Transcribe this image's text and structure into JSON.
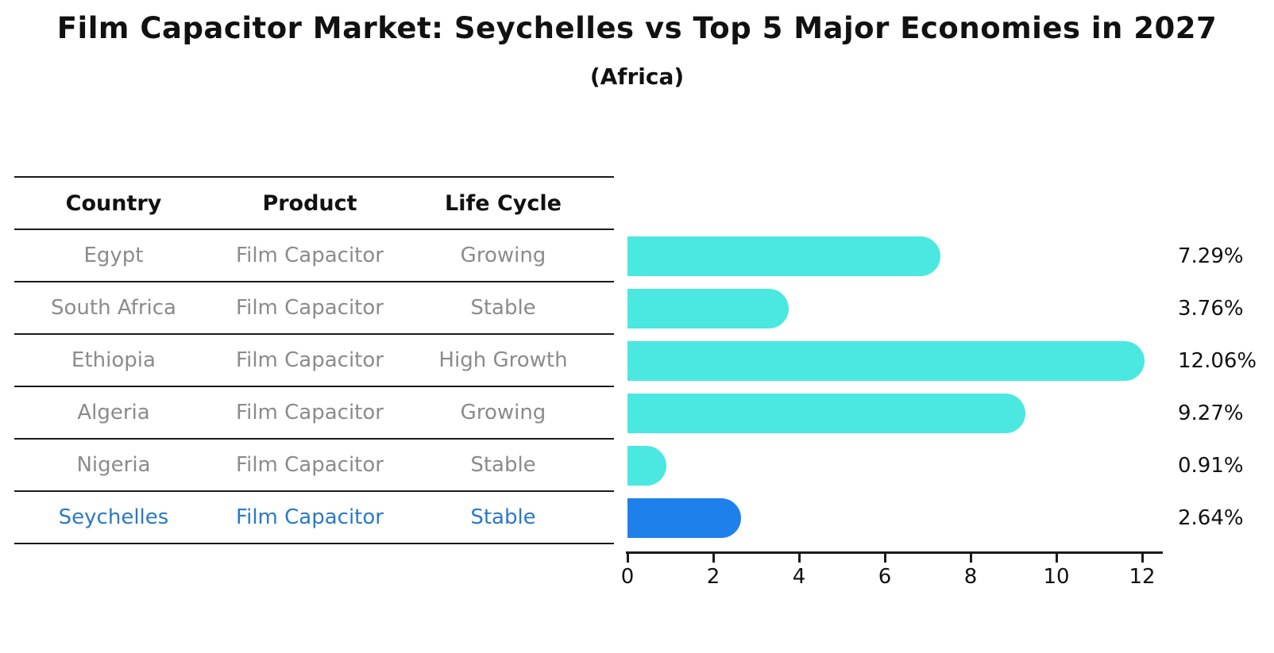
{
  "title": "Film Capacitor Market: Seychelles vs Top 5 Major Economies in 2027",
  "subtitle": "(Africa)",
  "table": {
    "headers": [
      "Country",
      "Product",
      "Life Cycle"
    ],
    "rows": [
      {
        "country": "Egypt",
        "product": "Film Capacitor",
        "life_cycle": "Growing",
        "highlight": false
      },
      {
        "country": "South Africa",
        "product": "Film Capacitor",
        "life_cycle": "Stable",
        "highlight": false
      },
      {
        "country": "Ethiopia",
        "product": "Film Capacitor",
        "life_cycle": "High Growth",
        "highlight": false
      },
      {
        "country": "Algeria",
        "product": "Film Capacitor",
        "life_cycle": "Growing",
        "highlight": false
      },
      {
        "country": "Nigeria",
        "product": "Film Capacitor",
        "life_cycle": "Stable",
        "highlight": false
      },
      {
        "country": "Seychelles",
        "product": "Film Capacitor",
        "life_cycle": "Stable",
        "highlight": true
      }
    ]
  },
  "chart_data": {
    "type": "bar",
    "orientation": "horizontal",
    "categories": [
      "Egypt",
      "South Africa",
      "Ethiopia",
      "Algeria",
      "Nigeria",
      "Seychelles"
    ],
    "values": [
      7.29,
      3.76,
      12.06,
      9.27,
      0.91,
      2.64
    ],
    "value_labels": [
      "7.29%",
      "3.76%",
      "12.06%",
      "9.27%",
      "0.91%",
      "2.64%"
    ],
    "xticks": [
      0,
      2,
      4,
      6,
      8,
      10,
      12
    ],
    "xlim": [
      0,
      12.7
    ],
    "grid": false,
    "legend": false,
    "highlight_index": 5,
    "title": "Film Capacitor Market: Seychelles vs Top 5 Major Economies in 2027 (Africa)",
    "xlabel": "",
    "ylabel": ""
  },
  "colors": {
    "bar": "#4aе8e0",
    "bar_fill": "#4ae8e0",
    "highlight_fill": "#1e80eb",
    "highlight_text": "#2979c9",
    "row_text": "#8b8b8b",
    "header_text": "#111111",
    "line": "#1a1a1a"
  }
}
